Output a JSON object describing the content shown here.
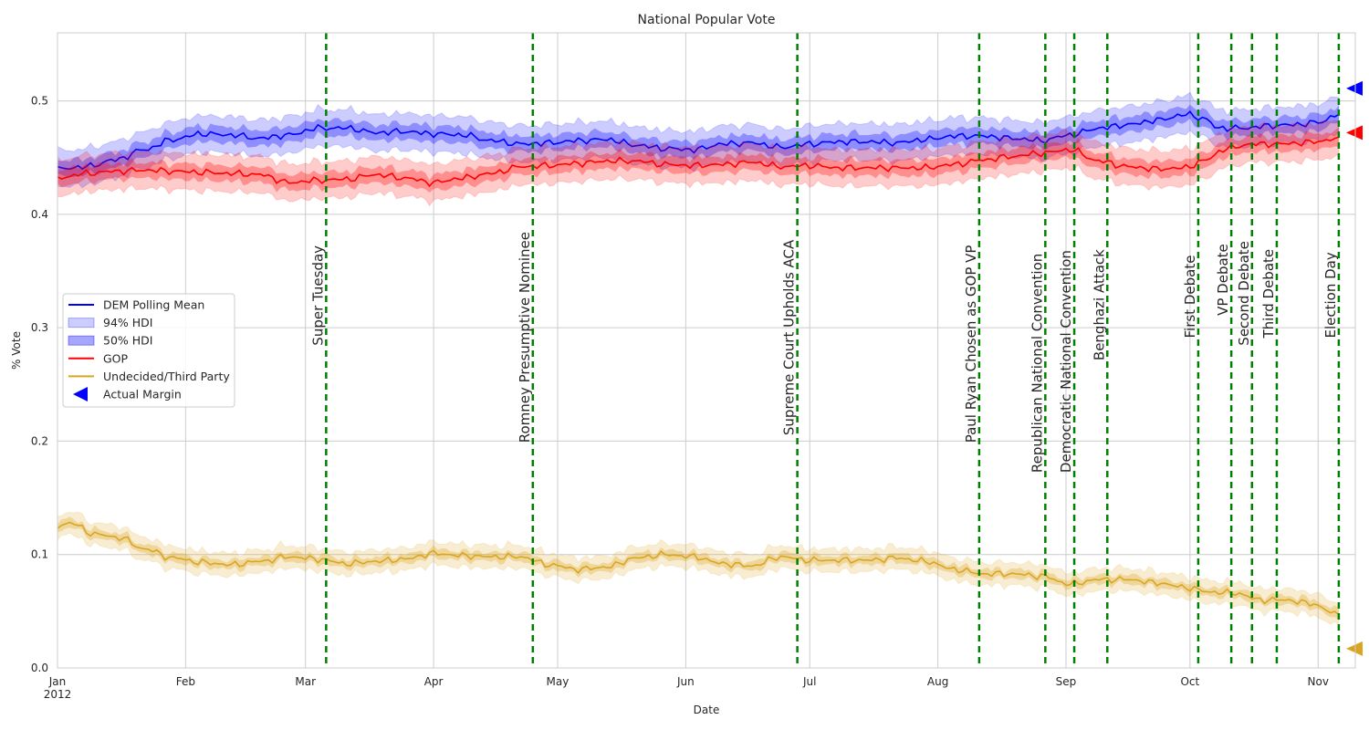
{
  "chart_data": {
    "type": "line",
    "title": "National Popular Vote",
    "xlabel": "Date",
    "ylabel": "% Vote",
    "x_range": [
      "2012-01-01",
      "2012-11-10"
    ],
    "ylim": [
      0.0,
      0.56
    ],
    "y_ticks": [
      "0.0",
      "0.1",
      "0.2",
      "0.3",
      "0.4",
      "0.5"
    ],
    "x_ticks": [
      {
        "date": "2012-01-01",
        "label": "Jan",
        "sub": "2012"
      },
      {
        "date": "2012-02-01",
        "label": "Feb",
        "sub": ""
      },
      {
        "date": "2012-03-01",
        "label": "Mar",
        "sub": ""
      },
      {
        "date": "2012-04-01",
        "label": "Apr",
        "sub": ""
      },
      {
        "date": "2012-05-01",
        "label": "May",
        "sub": ""
      },
      {
        "date": "2012-06-01",
        "label": "Jun",
        "sub": ""
      },
      {
        "date": "2012-07-01",
        "label": "Jul",
        "sub": ""
      },
      {
        "date": "2012-08-01",
        "label": "Aug",
        "sub": ""
      },
      {
        "date": "2012-09-01",
        "label": "Sep",
        "sub": ""
      },
      {
        "date": "2012-10-01",
        "label": "Oct",
        "sub": ""
      },
      {
        "date": "2012-11-01",
        "label": "Nov",
        "sub": ""
      }
    ],
    "grid": true,
    "legend_placement": "center-left",
    "legend": [
      {
        "label": "DEM Polling Mean",
        "kind": "line",
        "color": "#0000ff"
      },
      {
        "label": "94% HDI",
        "kind": "band94",
        "color": "#0000ff"
      },
      {
        "label": "50% HDI",
        "kind": "band50",
        "color": "#0000ff"
      },
      {
        "label": "GOP",
        "kind": "line",
        "color": "#ff0000"
      },
      {
        "label": "Undecided/Third Party",
        "kind": "line",
        "color": "#daa520"
      },
      {
        "label": "Actual Margin",
        "kind": "marker",
        "color": "#0000ff"
      }
    ],
    "series": [
      {
        "name": "DEM Polling Mean",
        "color": "#0000ff",
        "hdi50_halfwidth": 0.007,
        "hdi94_halfwidth": 0.016,
        "points": [
          [
            "2012-01-01",
            0.44
          ],
          [
            "2012-01-08",
            0.442
          ],
          [
            "2012-01-15",
            0.448
          ],
          [
            "2012-01-22",
            0.457
          ],
          [
            "2012-01-29",
            0.466
          ],
          [
            "2012-02-05",
            0.471
          ],
          [
            "2012-02-12",
            0.47
          ],
          [
            "2012-02-19",
            0.467
          ],
          [
            "2012-02-26",
            0.47
          ],
          [
            "2012-03-04",
            0.476
          ],
          [
            "2012-03-11",
            0.476
          ],
          [
            "2012-03-18",
            0.472
          ],
          [
            "2012-03-25",
            0.473
          ],
          [
            "2012-04-01",
            0.471
          ],
          [
            "2012-04-08",
            0.47
          ],
          [
            "2012-04-15",
            0.465
          ],
          [
            "2012-04-22",
            0.462
          ],
          [
            "2012-04-29",
            0.463
          ],
          [
            "2012-05-06",
            0.465
          ],
          [
            "2012-05-13",
            0.466
          ],
          [
            "2012-05-20",
            0.461
          ],
          [
            "2012-05-27",
            0.458
          ],
          [
            "2012-06-03",
            0.457
          ],
          [
            "2012-06-10",
            0.462
          ],
          [
            "2012-06-17",
            0.463
          ],
          [
            "2012-06-24",
            0.459
          ],
          [
            "2012-07-01",
            0.462
          ],
          [
            "2012-07-08",
            0.464
          ],
          [
            "2012-07-15",
            0.464
          ],
          [
            "2012-07-22",
            0.463
          ],
          [
            "2012-07-29",
            0.466
          ],
          [
            "2012-08-05",
            0.469
          ],
          [
            "2012-08-12",
            0.469
          ],
          [
            "2012-08-19",
            0.467
          ],
          [
            "2012-08-26",
            0.465
          ],
          [
            "2012-09-02",
            0.47
          ],
          [
            "2012-09-09",
            0.476
          ],
          [
            "2012-09-16",
            0.479
          ],
          [
            "2012-09-23",
            0.483
          ],
          [
            "2012-09-30",
            0.488
          ],
          [
            "2012-10-04",
            0.485
          ],
          [
            "2012-10-08",
            0.476
          ],
          [
            "2012-10-14",
            0.476
          ],
          [
            "2012-10-20",
            0.478
          ],
          [
            "2012-10-26",
            0.479
          ],
          [
            "2012-11-01",
            0.481
          ],
          [
            "2012-11-06",
            0.488
          ]
        ]
      },
      {
        "name": "GOP",
        "color": "#ff0000",
        "hdi50_halfwidth": 0.007,
        "hdi94_halfwidth": 0.016,
        "points": [
          [
            "2012-01-01",
            0.432
          ],
          [
            "2012-01-08",
            0.436
          ],
          [
            "2012-01-15",
            0.438
          ],
          [
            "2012-01-22",
            0.439
          ],
          [
            "2012-01-29",
            0.438
          ],
          [
            "2012-02-05",
            0.437
          ],
          [
            "2012-02-12",
            0.436
          ],
          [
            "2012-02-19",
            0.435
          ],
          [
            "2012-02-26",
            0.428
          ],
          [
            "2012-03-04",
            0.43
          ],
          [
            "2012-03-11",
            0.431
          ],
          [
            "2012-03-18",
            0.435
          ],
          [
            "2012-03-25",
            0.432
          ],
          [
            "2012-04-01",
            0.428
          ],
          [
            "2012-04-08",
            0.432
          ],
          [
            "2012-04-15",
            0.436
          ],
          [
            "2012-04-22",
            0.442
          ],
          [
            "2012-04-29",
            0.443
          ],
          [
            "2012-05-06",
            0.445
          ],
          [
            "2012-05-13",
            0.447
          ],
          [
            "2012-05-20",
            0.447
          ],
          [
            "2012-05-27",
            0.444
          ],
          [
            "2012-06-03",
            0.443
          ],
          [
            "2012-06-10",
            0.444
          ],
          [
            "2012-06-17",
            0.446
          ],
          [
            "2012-06-24",
            0.442
          ],
          [
            "2012-07-01",
            0.443
          ],
          [
            "2012-07-08",
            0.441
          ],
          [
            "2012-07-15",
            0.441
          ],
          [
            "2012-07-22",
            0.441
          ],
          [
            "2012-07-29",
            0.441
          ],
          [
            "2012-08-05",
            0.444
          ],
          [
            "2012-08-12",
            0.448
          ],
          [
            "2012-08-19",
            0.451
          ],
          [
            "2012-08-26",
            0.454
          ],
          [
            "2012-09-02",
            0.457
          ],
          [
            "2012-09-09",
            0.447
          ],
          [
            "2012-09-16",
            0.442
          ],
          [
            "2012-09-23",
            0.44
          ],
          [
            "2012-09-30",
            0.441
          ],
          [
            "2012-10-04",
            0.447
          ],
          [
            "2012-10-10",
            0.458
          ],
          [
            "2012-10-16",
            0.462
          ],
          [
            "2012-10-22",
            0.462
          ],
          [
            "2012-10-28",
            0.463
          ],
          [
            "2012-11-03",
            0.465
          ],
          [
            "2012-11-06",
            0.468
          ]
        ]
      },
      {
        "name": "Undecided/Third Party",
        "color": "#daa520",
        "hdi50_halfwidth": 0.004,
        "hdi94_halfwidth": 0.01,
        "points": [
          [
            "2012-01-01",
            0.125
          ],
          [
            "2012-01-04",
            0.128
          ],
          [
            "2012-01-10",
            0.118
          ],
          [
            "2012-01-16",
            0.115
          ],
          [
            "2012-01-22",
            0.105
          ],
          [
            "2012-01-29",
            0.097
          ],
          [
            "2012-02-05",
            0.093
          ],
          [
            "2012-02-12",
            0.091
          ],
          [
            "2012-02-19",
            0.094
          ],
          [
            "2012-02-26",
            0.098
          ],
          [
            "2012-03-04",
            0.096
          ],
          [
            "2012-03-11",
            0.092
          ],
          [
            "2012-03-18",
            0.094
          ],
          [
            "2012-03-25",
            0.096
          ],
          [
            "2012-04-01",
            0.101
          ],
          [
            "2012-04-08",
            0.099
          ],
          [
            "2012-04-15",
            0.098
          ],
          [
            "2012-04-22",
            0.098
          ],
          [
            "2012-04-29",
            0.091
          ],
          [
            "2012-05-06",
            0.087
          ],
          [
            "2012-05-13",
            0.089
          ],
          [
            "2012-05-20",
            0.097
          ],
          [
            "2012-05-27",
            0.1
          ],
          [
            "2012-06-03",
            0.098
          ],
          [
            "2012-06-10",
            0.092
          ],
          [
            "2012-06-17",
            0.09
          ],
          [
            "2012-06-24",
            0.098
          ],
          [
            "2012-07-01",
            0.095
          ],
          [
            "2012-07-08",
            0.095
          ],
          [
            "2012-07-15",
            0.095
          ],
          [
            "2012-07-22",
            0.097
          ],
          [
            "2012-07-29",
            0.094
          ],
          [
            "2012-08-05",
            0.087
          ],
          [
            "2012-08-12",
            0.083
          ],
          [
            "2012-08-19",
            0.083
          ],
          [
            "2012-08-26",
            0.081
          ],
          [
            "2012-09-02",
            0.074
          ],
          [
            "2012-09-09",
            0.078
          ],
          [
            "2012-09-16",
            0.078
          ],
          [
            "2012-09-23",
            0.075
          ],
          [
            "2012-09-30",
            0.071
          ],
          [
            "2012-10-06",
            0.067
          ],
          [
            "2012-10-12",
            0.066
          ],
          [
            "2012-10-18",
            0.06
          ],
          [
            "2012-10-24",
            0.06
          ],
          [
            "2012-10-30",
            0.057
          ],
          [
            "2012-11-06",
            0.047
          ]
        ]
      }
    ],
    "actual_margin_markers": [
      {
        "series": "DEM Polling Mean",
        "value": 0.511,
        "color": "#0000ff"
      },
      {
        "series": "GOP",
        "value": 0.472,
        "color": "#ff0000"
      },
      {
        "series": "Undecided/Third Party",
        "value": 0.017,
        "color": "#daa520"
      }
    ],
    "events": [
      {
        "date": "2012-03-06",
        "label": "Super Tuesday"
      },
      {
        "date": "2012-04-25",
        "label": "Romney Presumptive Nominee"
      },
      {
        "date": "2012-06-28",
        "label": "Supreme Court Upholds ACA"
      },
      {
        "date": "2012-08-11",
        "label": "Paul Ryan Chosen as GOP VP"
      },
      {
        "date": "2012-08-27",
        "label": "Republican National Convention"
      },
      {
        "date": "2012-09-03",
        "label": "Democratic National Convention"
      },
      {
        "date": "2012-09-11",
        "label": "Benghazi Attack"
      },
      {
        "date": "2012-10-03",
        "label": "First Debate"
      },
      {
        "date": "2012-10-11",
        "label": "VP Debate"
      },
      {
        "date": "2012-10-16",
        "label": "Second Debate"
      },
      {
        "date": "2012-10-22",
        "label": "Third Debate"
      },
      {
        "date": "2012-11-06",
        "label": "Election Day"
      }
    ],
    "event_line_color": "#008000"
  }
}
